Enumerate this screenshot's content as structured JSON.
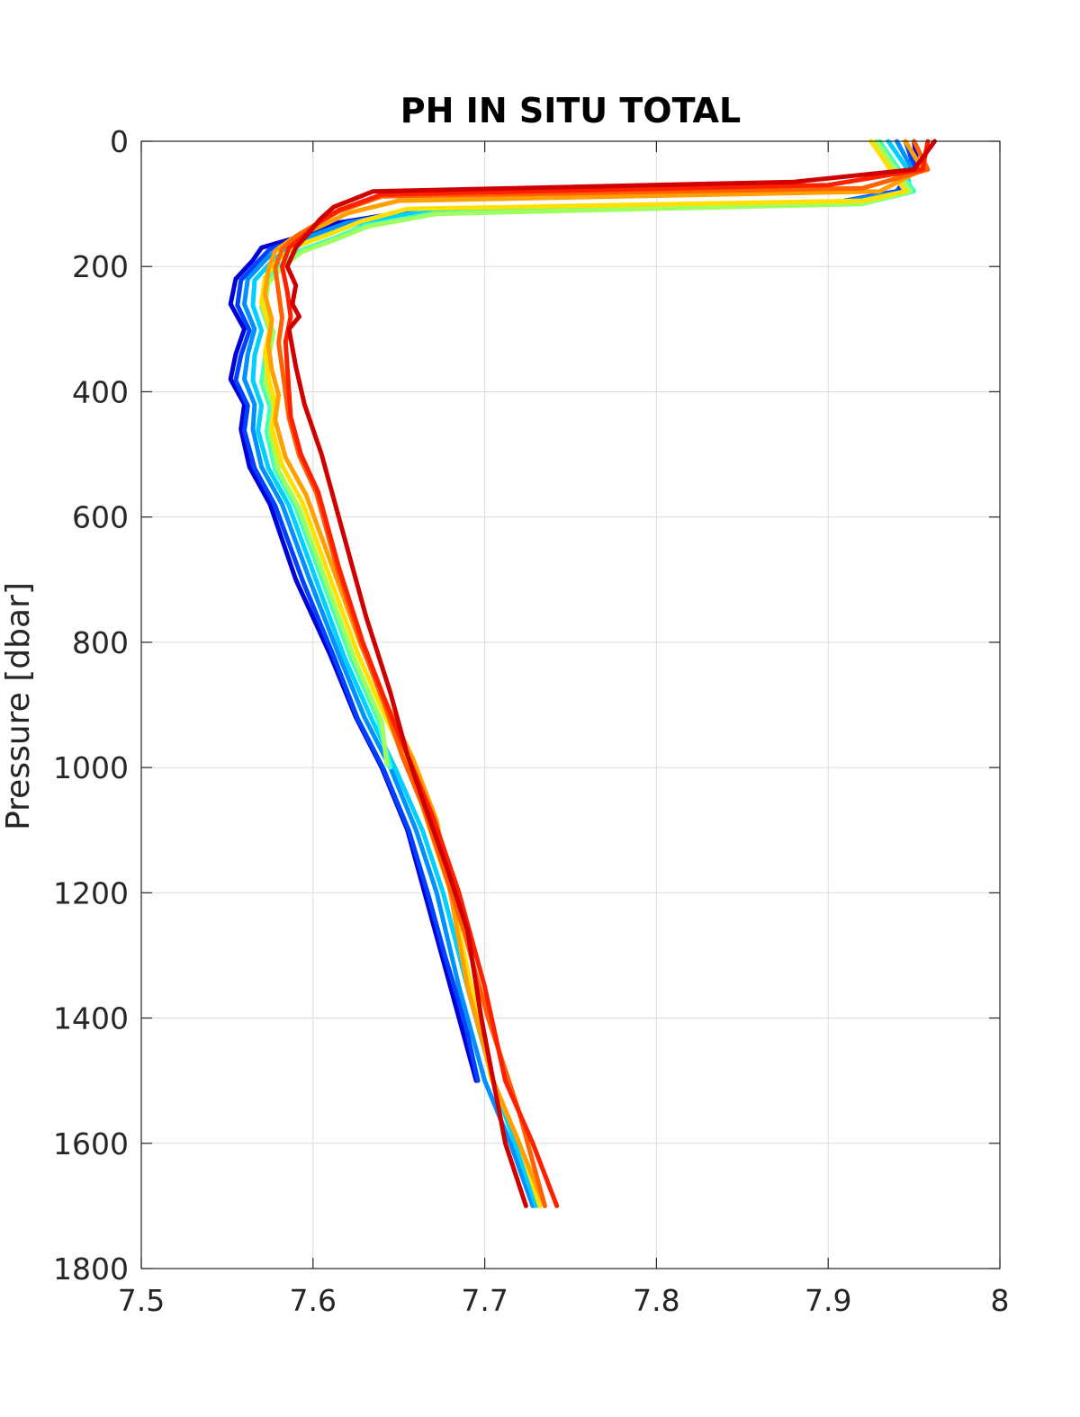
{
  "chart_data": {
    "type": "line",
    "title": "PH IN SITU TOTAL",
    "xlabel": "",
    "ylabel": "Pressure [dbar]",
    "xlim": [
      7.5,
      8
    ],
    "ylim": [
      0,
      1800
    ],
    "y_reversed": true,
    "grid": true,
    "legend": "none",
    "x_ticks": [
      "7.5",
      "7.6",
      "7.7",
      "7.8",
      "7.9",
      "8"
    ],
    "y_ticks": [
      "0",
      "200",
      "400",
      "600",
      "800",
      "1000",
      "1200",
      "1400",
      "1600",
      "1800"
    ],
    "series": [
      {
        "color": "#0000d8",
        "x": [
          7.95,
          7.952,
          7.94,
          7.9,
          7.66,
          7.615,
          7.595,
          7.57,
          7.565,
          7.555,
          7.552,
          7.56,
          7.555,
          7.552,
          7.56,
          7.558,
          7.563,
          7.575,
          7.59,
          7.61,
          7.625,
          7.64,
          7.655,
          7.665,
          7.675,
          7.685,
          7.695
        ],
        "y": [
          0,
          40,
          80,
          100,
          110,
          130,
          150,
          170,
          190,
          220,
          260,
          300,
          340,
          380,
          420,
          460,
          520,
          580,
          700,
          820,
          920,
          1000,
          1100,
          1200,
          1300,
          1400,
          1500
        ]
      },
      {
        "color": "#0040ff",
        "x": [
          7.945,
          7.95,
          7.94,
          7.9,
          7.66,
          7.618,
          7.598,
          7.575,
          7.568,
          7.558,
          7.556,
          7.563,
          7.558,
          7.555,
          7.562,
          7.56,
          7.566,
          7.578,
          7.594,
          7.612,
          7.626,
          7.641,
          7.656,
          7.667,
          7.677,
          7.688,
          7.696
        ],
        "y": [
          0,
          40,
          80,
          100,
          112,
          132,
          152,
          172,
          192,
          222,
          262,
          302,
          342,
          382,
          422,
          462,
          522,
          582,
          702,
          822,
          922,
          1002,
          1102,
          1202,
          1302,
          1402,
          1500
        ]
      },
      {
        "color": "#0090ff",
        "x": [
          7.94,
          7.948,
          7.945,
          7.9,
          7.66,
          7.62,
          7.6,
          7.58,
          7.572,
          7.562,
          7.56,
          7.566,
          7.562,
          7.56,
          7.566,
          7.565,
          7.57,
          7.582,
          7.598,
          7.615,
          7.63,
          7.645,
          7.66,
          7.672,
          7.685,
          7.7,
          7.715,
          7.728
        ],
        "y": [
          0,
          40,
          80,
          100,
          110,
          130,
          150,
          170,
          190,
          220,
          260,
          300,
          340,
          380,
          420,
          460,
          520,
          580,
          700,
          820,
          920,
          1000,
          1100,
          1200,
          1350,
          1500,
          1600,
          1700
        ]
      },
      {
        "color": "#00d0ff",
        "x": [
          7.935,
          7.945,
          7.948,
          7.91,
          7.665,
          7.625,
          7.605,
          7.585,
          7.576,
          7.566,
          7.565,
          7.57,
          7.566,
          7.565,
          7.57,
          7.568,
          7.574,
          7.586,
          7.602,
          7.618,
          7.634,
          7.648,
          7.664,
          7.676,
          7.69,
          7.705,
          7.718,
          7.73
        ],
        "y": [
          0,
          40,
          80,
          100,
          112,
          132,
          152,
          172,
          192,
          222,
          262,
          302,
          342,
          382,
          422,
          462,
          522,
          582,
          702,
          822,
          922,
          1002,
          1102,
          1202,
          1352,
          1502,
          1602,
          1700
        ]
      },
      {
        "color": "#40ffc0",
        "x": [
          7.93,
          7.94,
          7.95,
          7.92,
          7.67,
          7.63,
          7.612,
          7.592,
          7.582,
          7.572,
          7.57,
          7.575,
          7.572,
          7.57,
          7.575,
          7.573,
          7.578,
          7.59,
          7.606,
          7.622,
          7.638,
          7.645
        ],
        "y": [
          0,
          40,
          80,
          100,
          115,
          135,
          155,
          175,
          195,
          225,
          265,
          305,
          345,
          385,
          425,
          465,
          525,
          585,
          705,
          825,
          925,
          1000
        ]
      },
      {
        "color": "#a0ff60",
        "x": [
          7.928,
          7.938,
          7.948,
          7.92,
          7.672,
          7.632,
          7.614,
          7.594,
          7.584,
          7.574,
          7.572,
          7.577,
          7.574,
          7.572,
          7.577,
          7.575,
          7.58,
          7.592,
          7.608,
          7.624,
          7.64,
          7.643
        ],
        "y": [
          0,
          40,
          80,
          100,
          116,
          136,
          156,
          176,
          196,
          226,
          266,
          306,
          346,
          386,
          426,
          466,
          526,
          586,
          706,
          826,
          926,
          995
        ]
      },
      {
        "color": "#ffe000",
        "x": [
          7.925,
          7.935,
          7.945,
          7.92,
          7.655,
          7.628,
          7.61,
          7.59,
          7.58,
          7.572,
          7.57,
          7.575,
          7.572,
          7.574,
          7.578,
          7.576,
          7.582,
          7.594,
          7.61,
          7.626,
          7.642,
          7.656,
          7.668,
          7.68,
          7.692,
          7.704,
          7.72,
          7.732
        ],
        "y": [
          0,
          40,
          80,
          95,
          108,
          128,
          148,
          168,
          188,
          218,
          258,
          298,
          338,
          378,
          418,
          458,
          518,
          578,
          698,
          818,
          918,
          998,
          1098,
          1198,
          1348,
          1498,
          1598,
          1700
        ]
      },
      {
        "color": "#ffa000",
        "x": [
          7.945,
          7.955,
          7.93,
          7.65,
          7.62,
          7.605,
          7.588,
          7.578,
          7.574,
          7.572,
          7.576,
          7.574,
          7.576,
          7.58,
          7.578,
          7.584,
          7.596,
          7.612,
          7.628,
          7.644,
          7.658,
          7.672,
          7.68,
          7.69,
          7.705,
          7.72,
          7.735
        ],
        "y": [
          0,
          45,
          80,
          95,
          115,
          135,
          155,
          175,
          205,
          245,
          285,
          325,
          365,
          405,
          445,
          505,
          565,
          685,
          805,
          905,
          985,
          1085,
          1200,
          1350,
          1500,
          1600,
          1700
        ]
      },
      {
        "color": "#ff6000",
        "x": [
          7.95,
          7.958,
          7.92,
          7.64,
          7.615,
          7.602,
          7.59,
          7.582,
          7.578,
          7.58,
          7.582,
          7.58,
          7.582,
          7.584,
          7.586,
          7.592,
          7.602,
          7.614,
          7.628,
          7.642,
          7.652,
          7.664,
          7.676,
          7.688,
          7.702,
          7.72,
          7.735
        ],
        "y": [
          0,
          45,
          75,
          88,
          112,
          132,
          152,
          172,
          202,
          242,
          282,
          322,
          362,
          402,
          442,
          502,
          562,
          682,
          802,
          902,
          982,
          1062,
          1162,
          1262,
          1400,
          1550,
          1700
        ]
      },
      {
        "color": "#ff2000",
        "x": [
          7.958,
          7.955,
          7.9,
          7.64,
          7.615,
          7.603,
          7.595,
          7.586,
          7.582,
          7.585,
          7.587,
          7.584,
          7.585,
          7.586,
          7.587,
          7.593,
          7.603,
          7.615,
          7.629,
          7.643,
          7.655,
          7.67,
          7.685,
          7.7,
          7.712,
          7.728,
          7.742
        ],
        "y": [
          0,
          45,
          70,
          85,
          110,
          130,
          150,
          170,
          200,
          240,
          280,
          320,
          360,
          400,
          440,
          500,
          560,
          680,
          800,
          900,
          980,
          1080,
          1200,
          1350,
          1500,
          1600,
          1700
        ]
      },
      {
        "color": "#d00000",
        "x": [
          7.962,
          7.95,
          7.88,
          7.635,
          7.612,
          7.604,
          7.598,
          7.59,
          7.585,
          7.59,
          7.588,
          7.592,
          7.586,
          7.588,
          7.59,
          7.595,
          7.605,
          7.617,
          7.631,
          7.645,
          7.655,
          7.665,
          7.678,
          7.69,
          7.698,
          7.705,
          7.712,
          7.724
        ],
        "y": [
          0,
          45,
          65,
          80,
          105,
          125,
          145,
          170,
          200,
          230,
          260,
          280,
          300,
          330,
          360,
          420,
          500,
          620,
          760,
          880,
          980,
          1060,
          1160,
          1260,
          1400,
          1500,
          1600,
          1700
        ]
      }
    ]
  }
}
